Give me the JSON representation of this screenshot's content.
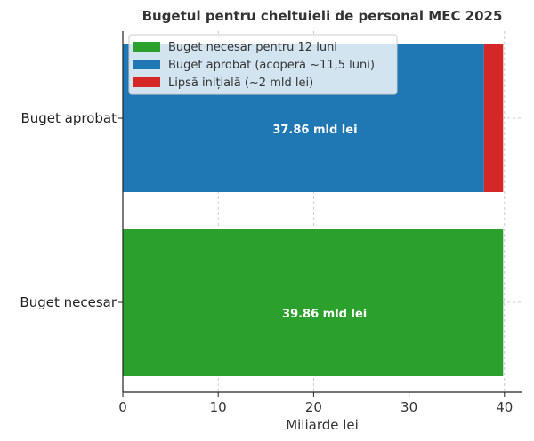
{
  "chart_data": {
    "type": "bar",
    "orientation": "horizontal",
    "stacked": true,
    "title": "Bugetul pentru cheltuieli de personal MEC 2025",
    "xlabel": "Miliarde lei",
    "ylabel": "",
    "xlim": [
      0,
      42
    ],
    "xticks": [
      0,
      10,
      20,
      30,
      40
    ],
    "grid": true,
    "legend_position": "top-left",
    "categories": [
      "Buget aprobat",
      "Buget necesar"
    ],
    "series": [
      {
        "name": "Buget necesar pentru 12 luni",
        "color": "#2ca02c",
        "values": [
          0,
          39.86
        ]
      },
      {
        "name": "Buget aprobat (acoperă ~11,5 luni)",
        "color": "#1f77b4",
        "values": [
          37.86,
          0
        ]
      },
      {
        "name": "Lipsă inițială (~2 mld lei)",
        "color": "#d62728",
        "values": [
          2.0,
          0
        ]
      }
    ],
    "data_labels": [
      {
        "category": "Buget aprobat",
        "value": 37.86,
        "text": "37.86 mld lei"
      },
      {
        "category": "Buget necesar",
        "value": 39.86,
        "text": "39.86 mld lei"
      }
    ]
  }
}
